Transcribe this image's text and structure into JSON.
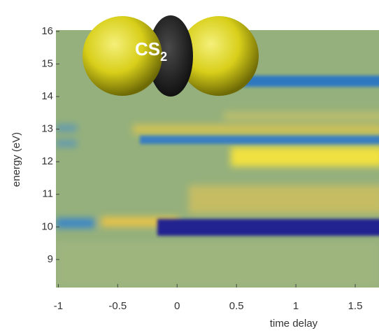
{
  "chart_data": {
    "type": "heatmap",
    "xlabel": "time delay",
    "ylabel": "energy (eV)",
    "xlim": [
      -1.02,
      1.7
    ],
    "ylim": [
      8.14,
      16.04
    ],
    "xticks": [
      -1,
      -0.5,
      0,
      0.5,
      1,
      1.5
    ],
    "yticks": [
      9,
      10,
      11,
      12,
      13,
      14,
      15,
      16
    ],
    "molecule": {
      "label": "CS",
      "subscript": "2"
    }
  }
}
